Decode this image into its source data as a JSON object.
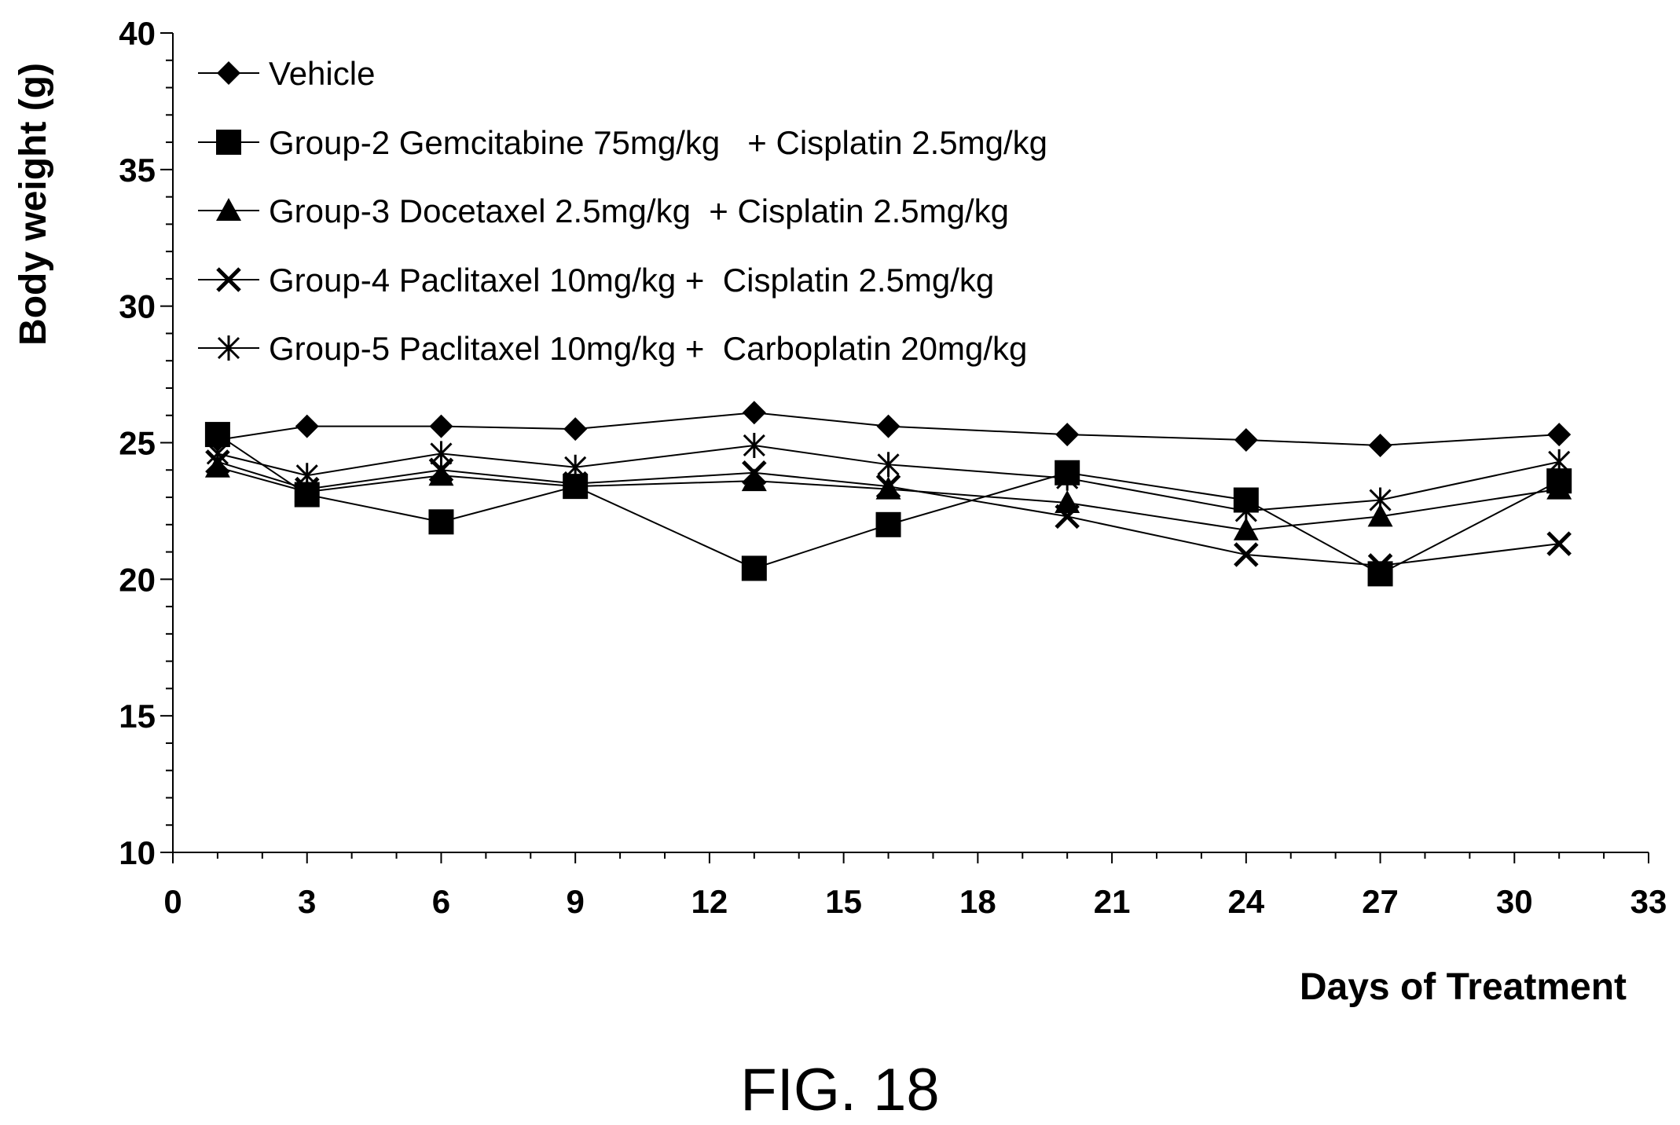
{
  "chart_data": {
    "type": "line",
    "xlabel": "Days of Treatment",
    "ylabel": "Body weight (g)",
    "xlim": [
      0,
      33
    ],
    "ylim": [
      10,
      40
    ],
    "xticks": [
      0,
      3,
      6,
      9,
      12,
      15,
      18,
      21,
      24,
      27,
      30,
      33
    ],
    "yticks": [
      10,
      15,
      20,
      25,
      30,
      35,
      40
    ],
    "x": [
      1,
      3,
      6,
      9,
      13,
      16,
      20,
      24,
      27,
      31
    ],
    "legend_position": "top-left",
    "series": [
      {
        "name": "Vehicle",
        "marker": "diamond",
        "values": [
          25.1,
          25.6,
          25.6,
          25.5,
          26.1,
          25.6,
          25.3,
          25.1,
          24.9,
          25.3
        ]
      },
      {
        "name": "Group-2 Gemcitabine 75mg/kg   + Cisplatin 2.5mg/kg",
        "marker": "square",
        "values": [
          25.3,
          23.1,
          22.1,
          23.4,
          20.4,
          22.0,
          23.9,
          22.9,
          20.2,
          23.6
        ]
      },
      {
        "name": "Group-3 Docetaxel 2.5mg/kg  + Cisplatin 2.5mg/kg",
        "marker": "triangle",
        "values": [
          24.1,
          23.2,
          23.8,
          23.4,
          23.6,
          23.3,
          22.8,
          21.8,
          22.3,
          23.3
        ]
      },
      {
        "name": "Group-4 Paclitaxel 10mg/kg +  Cisplatin 2.5mg/kg",
        "marker": "x",
        "values": [
          24.3,
          23.3,
          24.0,
          23.5,
          23.9,
          23.4,
          22.3,
          20.9,
          20.5,
          21.3
        ]
      },
      {
        "name": "Group-5 Paclitaxel 10mg/kg +  Carboplatin 20mg/kg",
        "marker": "star",
        "values": [
          24.6,
          23.8,
          24.6,
          24.1,
          24.9,
          24.2,
          23.7,
          22.5,
          22.9,
          24.3
        ]
      }
    ]
  },
  "caption": "FIG. 18"
}
